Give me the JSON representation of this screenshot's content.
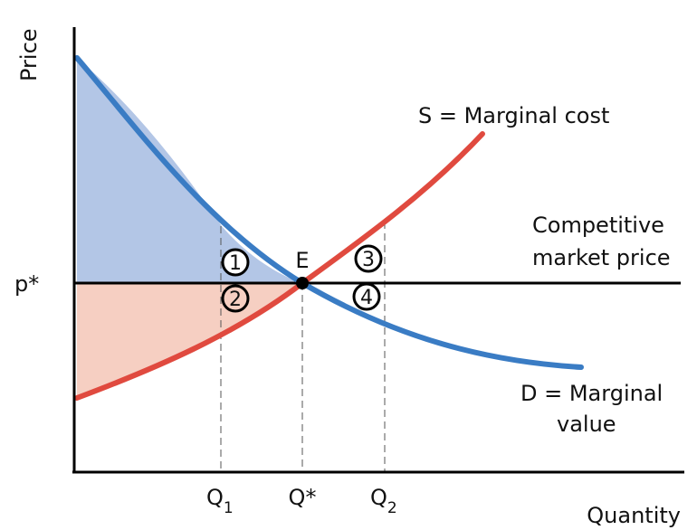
{
  "axes": {
    "y_label": "Price",
    "x_label": "Quantity"
  },
  "curves": {
    "supply_label": "S = Marginal cost",
    "demand_label_line1": "D = Marginal",
    "demand_label_line2": "value",
    "price_line_label_line1": "Competitive",
    "price_line_label_line2": "market price"
  },
  "points": {
    "equilibrium": "E",
    "price": "p*",
    "q1_main": "Q",
    "q1_sub": "1",
    "qstar": "Q*",
    "q2_main": "Q",
    "q2_sub": "2"
  },
  "regions": [
    {
      "label": "1"
    },
    {
      "label": "2"
    },
    {
      "label": "3"
    },
    {
      "label": "4"
    }
  ],
  "colors": {
    "demand": "#3a7cc4",
    "supply": "#e04a3f",
    "consumer_surplus": "#b3c6e6",
    "producer_surplus": "#f6cfc2",
    "axis": "#000000"
  }
}
